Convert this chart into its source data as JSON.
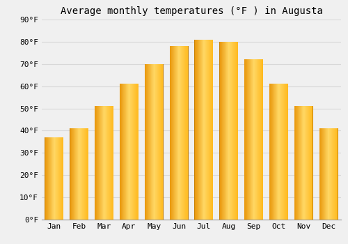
{
  "title": "Average monthly temperatures (°F ) in Augusta",
  "months": [
    "Jan",
    "Feb",
    "Mar",
    "Apr",
    "May",
    "Jun",
    "Jul",
    "Aug",
    "Sep",
    "Oct",
    "Nov",
    "Dec"
  ],
  "values": [
    37,
    41,
    51,
    61,
    70,
    78,
    81,
    80,
    72,
    61,
    51,
    41
  ],
  "bar_color_center": "#FFD966",
  "bar_color_left": "#E8960A",
  "bar_color_right": "#FFCA28",
  "ylim": [
    0,
    90
  ],
  "ytick_step": 10,
  "background_color": "#f0f0f0",
  "grid_color": "#d8d8d8",
  "title_fontsize": 10,
  "tick_fontsize": 8,
  "font_family": "monospace",
  "bar_width": 0.75
}
